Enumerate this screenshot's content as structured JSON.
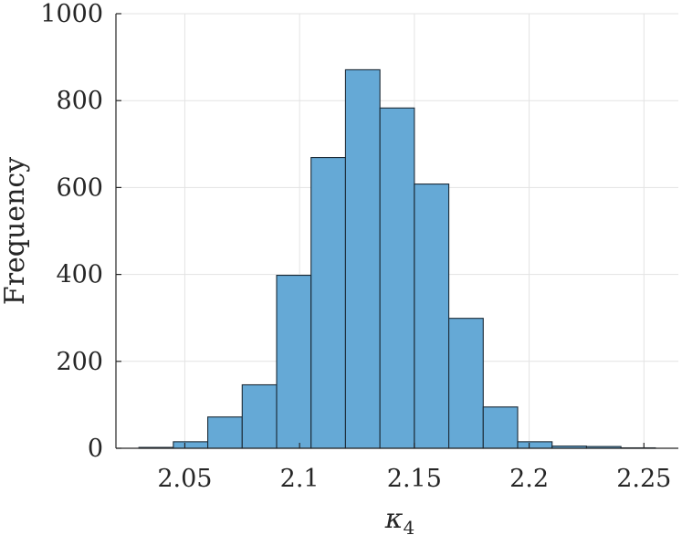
{
  "chart_data": {
    "type": "bar",
    "histogram": true,
    "bin_edges": [
      2.03,
      2.045,
      2.06,
      2.075,
      2.09,
      2.105,
      2.12,
      2.135,
      2.15,
      2.165,
      2.18,
      2.195,
      2.21,
      2.225,
      2.24,
      2.255
    ],
    "values": [
      2,
      15,
      72,
      146,
      398,
      669,
      871,
      783,
      608,
      299,
      95,
      15,
      5,
      4,
      1
    ],
    "xlabel": "κ4",
    "ylabel": "Frequency",
    "xlim": [
      2.02,
      2.265
    ],
    "ylim": [
      0,
      1000
    ],
    "xticks": [
      2.05,
      2.1,
      2.15,
      2.2,
      2.25
    ],
    "xtick_labels": [
      "2.05",
      "2.1",
      "2.15",
      "2.2",
      "2.25"
    ],
    "yticks": [
      0,
      200,
      400,
      600,
      800,
      1000
    ],
    "ytick_labels": [
      "0",
      "200",
      "400",
      "600",
      "800",
      "1000"
    ],
    "grid": true,
    "bar_color": "#65a9d6",
    "edge_color": "#1b2a36"
  }
}
